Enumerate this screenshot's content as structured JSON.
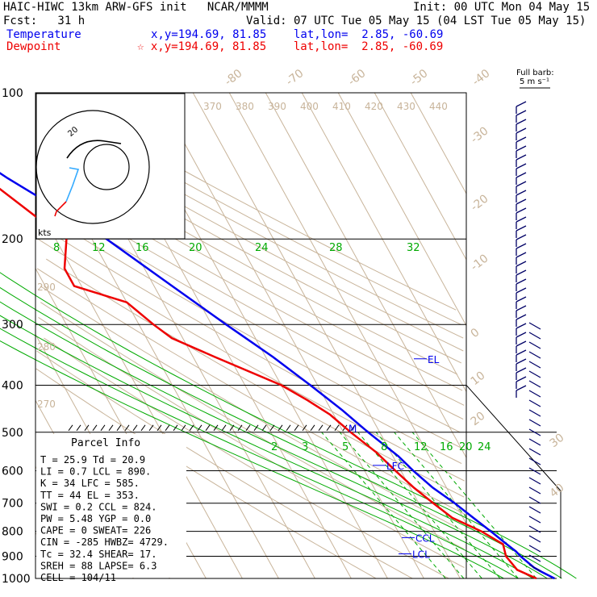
{
  "header": {
    "model": "HAIC-HIWC 13km ARW-GFS init   NCAR/MMMM",
    "init": "Init: 00 UTC Mon 04 May 15",
    "fcst": "Fcst:   31 h",
    "valid": "Valid: 07 UTC Tue 05 May 15 (04 LST Tue 05 May 15)",
    "temp_label": "Temperature",
    "temp_loc": "x,y=194.69, 81.85    lat,lon=  2.85, -60.69",
    "dew_label": "Dewpoint",
    "dew_loc": "☆ x,y=194.69, 81.85    lat,lon=  2.85, -60.69"
  },
  "barb_legend": {
    "line1": "Full barb:",
    "line2": "5 m s⁻¹"
  },
  "hodograph": {
    "label": "kts",
    "ring_label": "20"
  },
  "parcel_info": {
    "title": "Parcel Info",
    "rows": [
      "T  =   25.9 Td =  20.9",
      "LI =    0.7 LCL =  890.",
      "K  =     34 LFC =  585.",
      "TT =     44 EL  =  353.",
      "SWI =   0.2 CCL =  824.",
      "PW =   5.48 YGP =   0.0",
      "CAPE =    0 SWEAT=  226",
      "CIN =  -285 HWBZ= 4729.",
      "Tc =   32.4 SHEAR=  17.",
      "SREH =   88 LAPSE=  6.3",
      "CELL = 104/11"
    ]
  },
  "colors": {
    "temperature": "#0000ee",
    "dewpoint": "#ee0000",
    "isotherm": "#c8b49a",
    "mixing": "#00aa00",
    "text": "#000000"
  },
  "chart_data": {
    "type": "line",
    "title": "",
    "ylabel": "",
    "yscale": "log-pressure",
    "pressure_levels": [
      "100",
      "200",
      "300",
      "400",
      "500",
      "600",
      "700",
      "800",
      "900",
      "1000"
    ],
    "isotherms_top": [
      "-80",
      "-70",
      "-60",
      "-50",
      "-40"
    ],
    "isotherms_right": [
      "-30",
      "-20",
      "-10",
      "0",
      "10",
      "20",
      "30",
      "40"
    ],
    "theta_labels_top": [
      "370",
      "380",
      "390",
      "400",
      "410",
      "420",
      "430",
      "440"
    ],
    "theta_labels_left": [
      "290",
      "280",
      "270"
    ],
    "mixing_ratio_upper": [
      "8",
      "12",
      "16",
      "20",
      "24",
      "28",
      "32"
    ],
    "mixing_ratio_lower": [
      "2",
      "3",
      "5",
      "8",
      "12",
      "16",
      "20",
      "24"
    ],
    "levels_marked": [
      {
        "label": "EL",
        "p": 353
      },
      {
        "label": "LFC",
        "p": 585
      },
      {
        "label": "CCL",
        "p": 824
      },
      {
        "label": "LCL",
        "p": 890
      },
      {
        "label": "M",
        "p": 490
      }
    ],
    "series": [
      {
        "name": "Temperature",
        "points": [
          [
            1000,
            26
          ],
          [
            970,
            23.5
          ],
          [
            950,
            22
          ],
          [
            900,
            20
          ],
          [
            880,
            19.5
          ],
          [
            850,
            18
          ],
          [
            800,
            15.6
          ],
          [
            750,
            12.8
          ],
          [
            700,
            9.9
          ],
          [
            650,
            6.2
          ],
          [
            600,
            3.4
          ],
          [
            560,
            1.5
          ],
          [
            500,
            -3.2
          ],
          [
            450,
            -7
          ],
          [
            400,
            -12
          ],
          [
            350,
            -18
          ],
          [
            300,
            -26
          ],
          [
            250,
            -35
          ],
          [
            200,
            -46
          ],
          [
            170,
            -56
          ],
          [
            150,
            -64
          ],
          [
            125,
            -74
          ],
          [
            110,
            -79
          ],
          [
            100,
            -82
          ]
        ]
      },
      {
        "name": "Dewpoint",
        "points": [
          [
            1000,
            21
          ],
          [
            960,
            17
          ],
          [
            900,
            16
          ],
          [
            850,
            17
          ],
          [
            800,
            13
          ],
          [
            750,
            7
          ],
          [
            700,
            4
          ],
          [
            650,
            1
          ],
          [
            600,
            -1.5
          ],
          [
            550,
            -4
          ],
          [
            500,
            -8
          ],
          [
            460,
            -11
          ],
          [
            430,
            -15
          ],
          [
            400,
            -20
          ],
          [
            350,
            -34
          ],
          [
            320,
            -43
          ],
          [
            300,
            -46
          ],
          [
            270,
            -50
          ],
          [
            250,
            -62
          ],
          [
            230,
            -62
          ],
          [
            200,
            -57
          ],
          [
            180,
            -62
          ],
          [
            150,
            -70
          ],
          [
            130,
            -74
          ],
          [
            100,
            -80
          ]
        ]
      }
    ]
  }
}
